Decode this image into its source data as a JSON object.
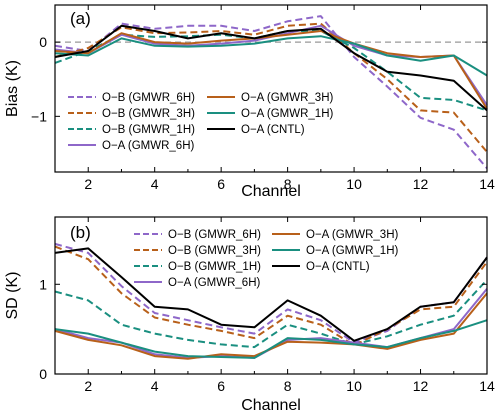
{
  "chart_data": [
    {
      "type": "line",
      "panel_label": "(a)",
      "xlabel": "Channel",
      "ylabel": "Bias (K)",
      "xlim": [
        1,
        14
      ],
      "ylim": [
        -1.75,
        0.5
      ],
      "xticks": [
        2,
        4,
        6,
        8,
        10,
        12,
        14
      ],
      "yticks": [
        0,
        -1
      ],
      "ytick_labels": [
        "0",
        "−1"
      ],
      "zero_line": {
        "value": 0,
        "color": "#999999",
        "style": "dashed"
      },
      "x": [
        1,
        2,
        3,
        4,
        5,
        6,
        7,
        8,
        9,
        10,
        11,
        12,
        13,
        14
      ],
      "legend_columns": [
        [
          "O−B (GMWR_6H)",
          "O−B (GMWR_3H)",
          "O−B (GMWR_1H)",
          "O−A (GMWR_6H)"
        ],
        [
          "O−A (GMWR_3H)",
          "O−A (GMWR_1H)",
          "O−A (CNTL)"
        ]
      ],
      "series": [
        {
          "name": "O−B (GMWR_6H)",
          "color": "#8e67c9",
          "style": "dashed",
          "values": [
            -0.05,
            -0.12,
            0.25,
            0.18,
            0.22,
            0.22,
            0.15,
            0.28,
            0.35,
            -0.2,
            -0.6,
            -1.02,
            -1.18,
            -1.7
          ]
        },
        {
          "name": "O−B (GMWR_3H)",
          "color": "#b8601a",
          "style": "dashed",
          "values": [
            -0.2,
            -0.08,
            0.2,
            0.12,
            0.13,
            0.15,
            0.1,
            0.22,
            0.25,
            -0.15,
            -0.5,
            -0.92,
            -0.95,
            -1.48
          ]
        },
        {
          "name": "O−B (GMWR_1H)",
          "color": "#1a8f80",
          "style": "dashed",
          "values": [
            -0.28,
            -0.12,
            0.1,
            0.07,
            0.08,
            0.1,
            0.05,
            0.15,
            0.15,
            -0.08,
            -0.4,
            -0.75,
            -0.78,
            -0.92
          ]
        },
        {
          "name": "O−A (GMWR_6H)",
          "color": "#8e67c9",
          "style": "solid",
          "values": [
            -0.1,
            -0.15,
            0.1,
            -0.02,
            -0.05,
            -0.02,
            0.02,
            0.12,
            0.22,
            -0.05,
            -0.18,
            -0.2,
            -0.18,
            -0.85
          ]
        },
        {
          "name": "O−A (GMWR_3H)",
          "color": "#b8601a",
          "style": "solid",
          "values": [
            -0.12,
            -0.15,
            0.12,
            0.0,
            -0.02,
            0.02,
            0.05,
            0.1,
            0.15,
            -0.02,
            -0.15,
            -0.2,
            -0.18,
            -0.9
          ]
        },
        {
          "name": "O−A (GMWR_1H)",
          "color": "#1a8f80",
          "style": "solid",
          "values": [
            -0.15,
            -0.18,
            0.05,
            -0.05,
            -0.06,
            -0.05,
            -0.02,
            0.05,
            0.08,
            -0.02,
            -0.18,
            -0.25,
            -0.18,
            -0.45
          ]
        },
        {
          "name": "O−A (CNTL)",
          "color": "#000000",
          "style": "solid",
          "values": [
            -0.2,
            -0.12,
            0.22,
            0.15,
            0.05,
            0.12,
            0.05,
            0.15,
            0.18,
            -0.15,
            -0.4,
            -0.45,
            -0.52,
            -0.92
          ]
        }
      ]
    },
    {
      "type": "line",
      "panel_label": "(b)",
      "xlabel": "Channel",
      "ylabel": "SD (K)",
      "xlim": [
        1,
        14
      ],
      "ylim": [
        0,
        1.75
      ],
      "xticks": [
        2,
        4,
        6,
        8,
        10,
        12,
        14
      ],
      "yticks": [
        0,
        1
      ],
      "ytick_labels": [
        "0",
        "1"
      ],
      "x": [
        1,
        2,
        3,
        4,
        5,
        6,
        7,
        8,
        9,
        10,
        11,
        12,
        13,
        14
      ],
      "legend_columns": [
        [
          "O−B (GMWR_6H)",
          "O−B (GMWR_3H)",
          "O−B (GMWR_1H)",
          "O−A (GMWR_6H)"
        ],
        [
          "O−A (GMWR_3H)",
          "O−A (GMWR_1H)",
          "O−A (CNTL)"
        ]
      ],
      "series": [
        {
          "name": "O−B (GMWR_6H)",
          "color": "#8e67c9",
          "style": "dashed",
          "values": [
            1.45,
            1.35,
            0.98,
            0.68,
            0.6,
            0.52,
            0.45,
            0.72,
            0.6,
            0.35,
            0.48,
            0.75,
            0.8,
            1.3
          ]
        },
        {
          "name": "O−B (GMWR_3H)",
          "color": "#b8601a",
          "style": "dashed",
          "values": [
            1.42,
            1.28,
            0.9,
            0.63,
            0.55,
            0.48,
            0.4,
            0.65,
            0.55,
            0.32,
            0.5,
            0.72,
            0.75,
            1.25
          ]
        },
        {
          "name": "O−B (GMWR_1H)",
          "color": "#1a8f80",
          "style": "dashed",
          "values": [
            0.92,
            0.82,
            0.55,
            0.45,
            0.38,
            0.33,
            0.3,
            0.55,
            0.45,
            0.33,
            0.42,
            0.55,
            0.65,
            1.05
          ]
        },
        {
          "name": "O−A (GMWR_6H)",
          "color": "#8e67c9",
          "style": "solid",
          "values": [
            0.5,
            0.4,
            0.35,
            0.22,
            0.18,
            0.2,
            0.18,
            0.38,
            0.4,
            0.35,
            0.3,
            0.4,
            0.5,
            0.95
          ]
        },
        {
          "name": "O−A (GMWR_3H)",
          "color": "#b8601a",
          "style": "solid",
          "values": [
            0.48,
            0.38,
            0.32,
            0.2,
            0.17,
            0.22,
            0.2,
            0.36,
            0.35,
            0.33,
            0.28,
            0.38,
            0.45,
            0.9
          ]
        },
        {
          "name": "O−A (GMWR_1H)",
          "color": "#1a8f80",
          "style": "solid",
          "values": [
            0.5,
            0.45,
            0.35,
            0.25,
            0.2,
            0.19,
            0.18,
            0.4,
            0.38,
            0.33,
            0.3,
            0.4,
            0.48,
            0.6
          ]
        },
        {
          "name": "O−A (CNTL)",
          "color": "#000000",
          "style": "solid",
          "values": [
            1.35,
            1.4,
            1.08,
            0.75,
            0.72,
            0.55,
            0.52,
            0.82,
            0.65,
            0.37,
            0.5,
            0.75,
            0.8,
            1.3
          ]
        }
      ]
    }
  ]
}
